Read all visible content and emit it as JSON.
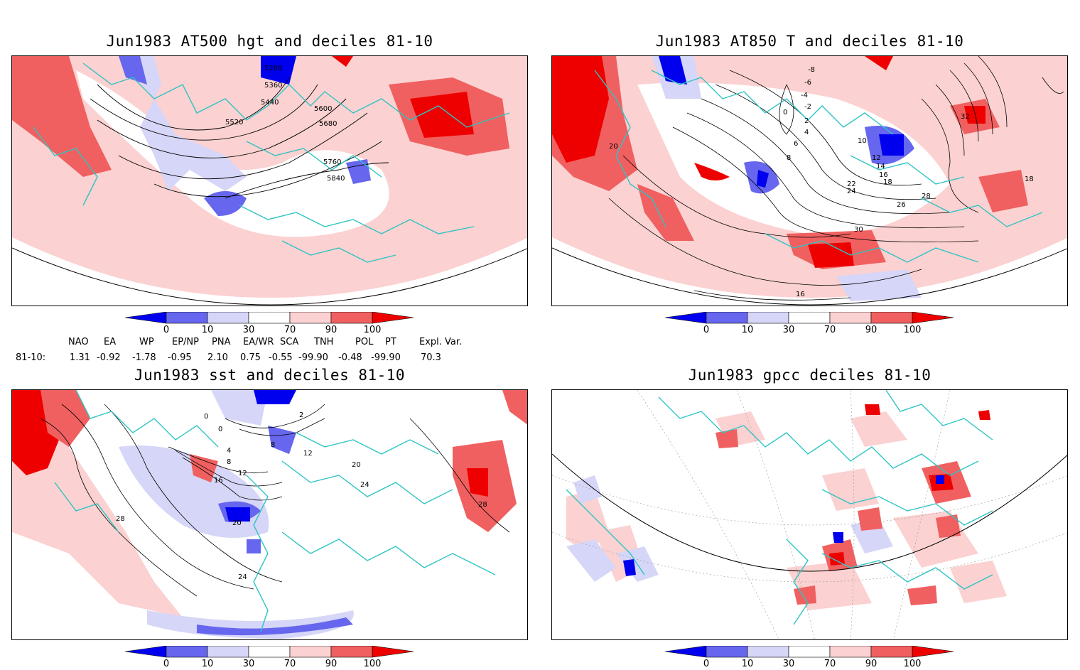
{
  "panels": {
    "p1": {
      "title": "Jun1983 AT500 hgt and deciles 81-10",
      "contour_labels": [
        "5280",
        "5360",
        "5440",
        "5520",
        "5600",
        "5680",
        "5760",
        "5840"
      ]
    },
    "p2": {
      "title": "Jun1983 AT850 T and deciles 81-10",
      "contour_labels": [
        "-8",
        "-6",
        "-4",
        "-2",
        "0",
        "2",
        "4",
        "6",
        "8",
        "10",
        "12",
        "14",
        "16",
        "18",
        "20",
        "22",
        "24",
        "26",
        "28",
        "30",
        "32",
        "18",
        "16"
      ]
    },
    "p3": {
      "title": "Jun1983 sst and deciles 81-10",
      "contour_labels": [
        "0",
        "0",
        "4",
        "8",
        "12",
        "16",
        "20",
        "24",
        "28",
        "28",
        "24",
        "20",
        "12",
        "2",
        "8"
      ]
    },
    "p4": {
      "title": "Jun1983 gpcc deciles 81-10"
    }
  },
  "colorbar": {
    "ticks": [
      "0",
      "10",
      "30",
      "70",
      "90",
      "100"
    ],
    "colors": [
      "#0000ee",
      "#6666ee",
      "#d6d6f8",
      "#ffffff",
      "#fbd1d1",
      "#f06060",
      "#ee0000"
    ]
  },
  "indices": {
    "headers": [
      "NAO",
      "EA",
      "WP",
      "EP/NP",
      "PNA",
      "EA/WR",
      "SCA",
      "TNH",
      "POL",
      "PT",
      "Expl. Var."
    ],
    "row_label": "81-10:",
    "values": [
      "1.31",
      "-0.92",
      "-1.78",
      "-0.95",
      "2.10",
      "0.75",
      "-0.55",
      "-99.90",
      "-0.48",
      "-99.90",
      "70.3"
    ]
  },
  "colors": {
    "coastline": "#2ec4c4",
    "land_border": "#2ec4c4",
    "pos_strong": "#ee0000",
    "pos_mid": "#f06060",
    "pos_light": "#fbd1d1",
    "neg_strong": "#0000ee",
    "neg_mid": "#6666ee",
    "neg_light": "#d6d6f8"
  }
}
